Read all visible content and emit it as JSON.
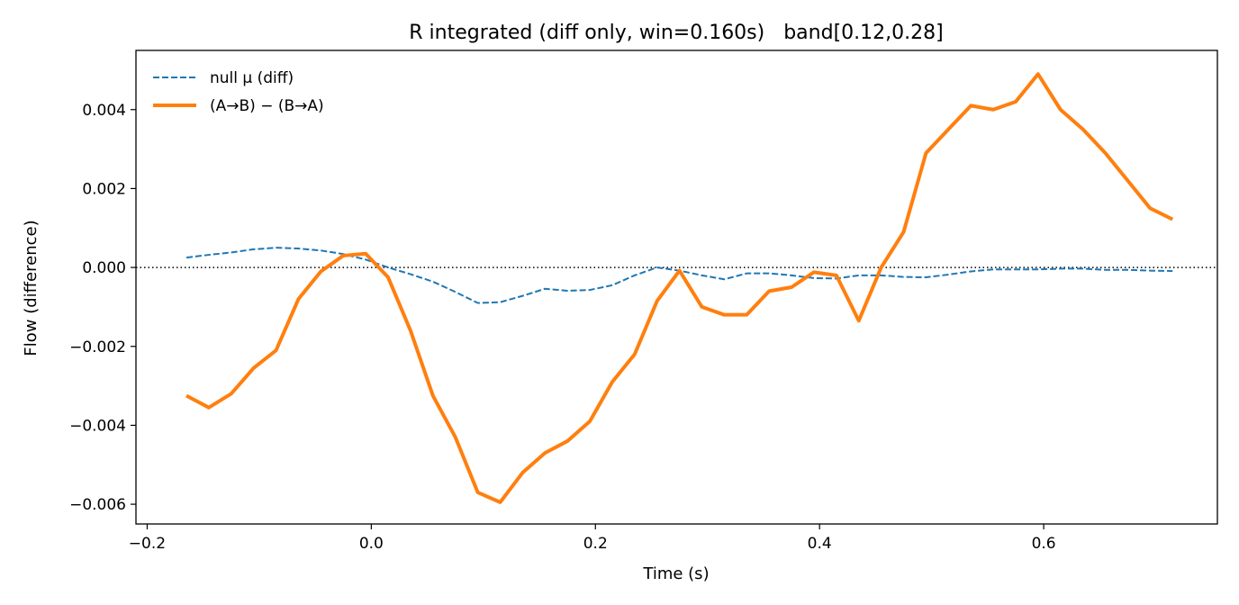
{
  "chart_data": {
    "type": "line",
    "title": "R integrated (diff only, win=0.160s)   band[0.12,0.28]",
    "xlabel": "Time (s)",
    "ylabel": "Flow (difference)",
    "xlim": [
      -0.21,
      0.755
    ],
    "ylim": [
      -0.0065,
      0.0055
    ],
    "xticks": [
      -0.2,
      0.0,
      0.2,
      0.4,
      0.6
    ],
    "xtick_labels": [
      "−0.2",
      "0.0",
      "0.2",
      "0.4",
      "0.6"
    ],
    "yticks": [
      -0.006,
      -0.004,
      -0.002,
      0.0,
      0.002,
      0.004
    ],
    "ytick_labels": [
      "−0.006",
      "−0.004",
      "−0.002",
      "0.000",
      "0.002",
      "0.004"
    ],
    "grid": false,
    "legend_position": "top-left",
    "zero_line": {
      "y": 0,
      "style": "dotted",
      "color": "#000000"
    },
    "series": [
      {
        "name": "null μ (diff)",
        "style": "dashed",
        "color": "#1f77b4",
        "x": [
          -0.165,
          -0.145,
          -0.125,
          -0.105,
          -0.085,
          -0.065,
          -0.045,
          -0.025,
          -0.005,
          0.015,
          0.035,
          0.055,
          0.075,
          0.095,
          0.115,
          0.135,
          0.155,
          0.175,
          0.195,
          0.215,
          0.235,
          0.255,
          0.275,
          0.295,
          0.315,
          0.335,
          0.355,
          0.375,
          0.395,
          0.415,
          0.435,
          0.455,
          0.475,
          0.495,
          0.515,
          0.535,
          0.555,
          0.575,
          0.595,
          0.615,
          0.635,
          0.655,
          0.675,
          0.695,
          0.715
        ],
        "values": [
          0.00025,
          0.00032,
          0.00038,
          0.00046,
          0.0005,
          0.00048,
          0.00043,
          0.00034,
          0.0002,
          0.0,
          -0.00017,
          -0.00036,
          -0.00062,
          -0.0009,
          -0.00088,
          -0.00072,
          -0.00054,
          -0.00059,
          -0.00057,
          -0.00045,
          -0.0002,
          0.0,
          -8e-05,
          -0.0002,
          -0.0003,
          -0.00015,
          -0.00015,
          -0.0002,
          -0.00027,
          -0.00028,
          -0.0002,
          -0.0002,
          -0.00024,
          -0.00025,
          -0.00018,
          -0.0001,
          -5e-05,
          -5e-05,
          -5e-05,
          -3e-05,
          -3e-05,
          -6e-05,
          -6e-05,
          -8e-05,
          -9e-05
        ]
      },
      {
        "name": "(A→B) − (B→A)",
        "style": "solid",
        "color": "#ff7f0e",
        "x": [
          -0.165,
          -0.145,
          -0.125,
          -0.105,
          -0.085,
          -0.065,
          -0.045,
          -0.025,
          -0.005,
          0.015,
          0.035,
          0.055,
          0.075,
          0.095,
          0.115,
          0.135,
          0.155,
          0.175,
          0.195,
          0.215,
          0.235,
          0.255,
          0.275,
          0.295,
          0.315,
          0.335,
          0.355,
          0.375,
          0.395,
          0.415,
          0.435,
          0.455,
          0.475,
          0.495,
          0.515,
          0.535,
          0.555,
          0.575,
          0.595,
          0.615,
          0.635,
          0.655,
          0.675,
          0.695,
          0.715
        ],
        "values": [
          -0.00325,
          -0.00355,
          -0.0032,
          -0.00255,
          -0.0021,
          -0.0008,
          -0.0001,
          0.0003,
          0.00035,
          -0.00025,
          -0.0016,
          -0.00325,
          -0.0043,
          -0.0057,
          -0.00595,
          -0.0052,
          -0.0047,
          -0.0044,
          -0.0039,
          -0.0029,
          -0.0022,
          -0.00085,
          -8e-05,
          -0.001,
          -0.0012,
          -0.0012,
          -0.0006,
          -0.0005,
          -0.00012,
          -0.0002,
          -0.00135,
          0.0,
          0.0009,
          0.0029,
          0.0035,
          0.0041,
          0.004,
          0.0042,
          0.0049,
          0.004,
          0.0035,
          0.0029,
          0.0022,
          0.0015,
          0.00122
        ]
      }
    ]
  }
}
